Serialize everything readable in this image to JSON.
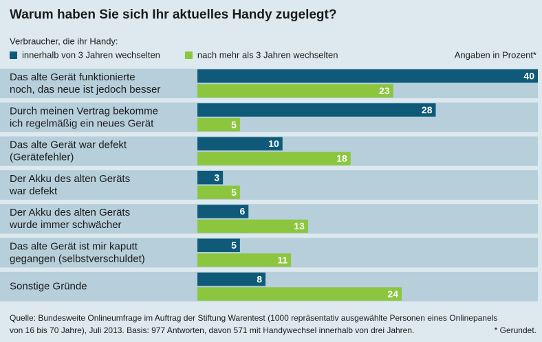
{
  "chart_data": {
    "type": "bar",
    "orientation": "horizontal",
    "title": "Warum haben Sie sich Ihr aktuelles Handy zugelegt?",
    "subtitle": "Verbraucher, die ihr Handy:",
    "unit_note": "Angaben in Prozent*",
    "categories": [
      "Das alte Gerät funktionierte\nnoch, das neue ist jedoch besser",
      "Durch meinen Vertrag bekomme\nich regelmäßig ein neues Gerät",
      "Das alte Gerät war defekt\n(Gerätefehler)",
      "Der Akku des alten Geräts\nwar defekt",
      "Der Akku des alten Geräts\nwurde immer schwächer",
      "Das alte Gerät ist mir kaputt\ngegangen (selbstverschuldet)",
      "Sonstige Gründe"
    ],
    "series": [
      {
        "name": "innerhalb von 3 Jahren wechselten",
        "color": "#0e5a78",
        "values": [
          40,
          28,
          10,
          3,
          6,
          5,
          8
        ]
      },
      {
        "name": "nach mehr als 3 Jahren wechselten",
        "color": "#8cc63f",
        "values": [
          23,
          5,
          18,
          5,
          13,
          11,
          24
        ]
      }
    ],
    "xlim": [
      0,
      40
    ],
    "source": "Quelle: Bundesweite Onlineumfrage im Auftrag der Stiftung Warentest (1000 repräsentativ ausgewählte Personen eines Onlinepanels\nvon 16 bis 70 Jahre), Juli 2013. Basis: 977 Antworten, davon 571 mit Handywechsel innerhalb von drei Jahren.",
    "footnote": "* Gerundet."
  }
}
